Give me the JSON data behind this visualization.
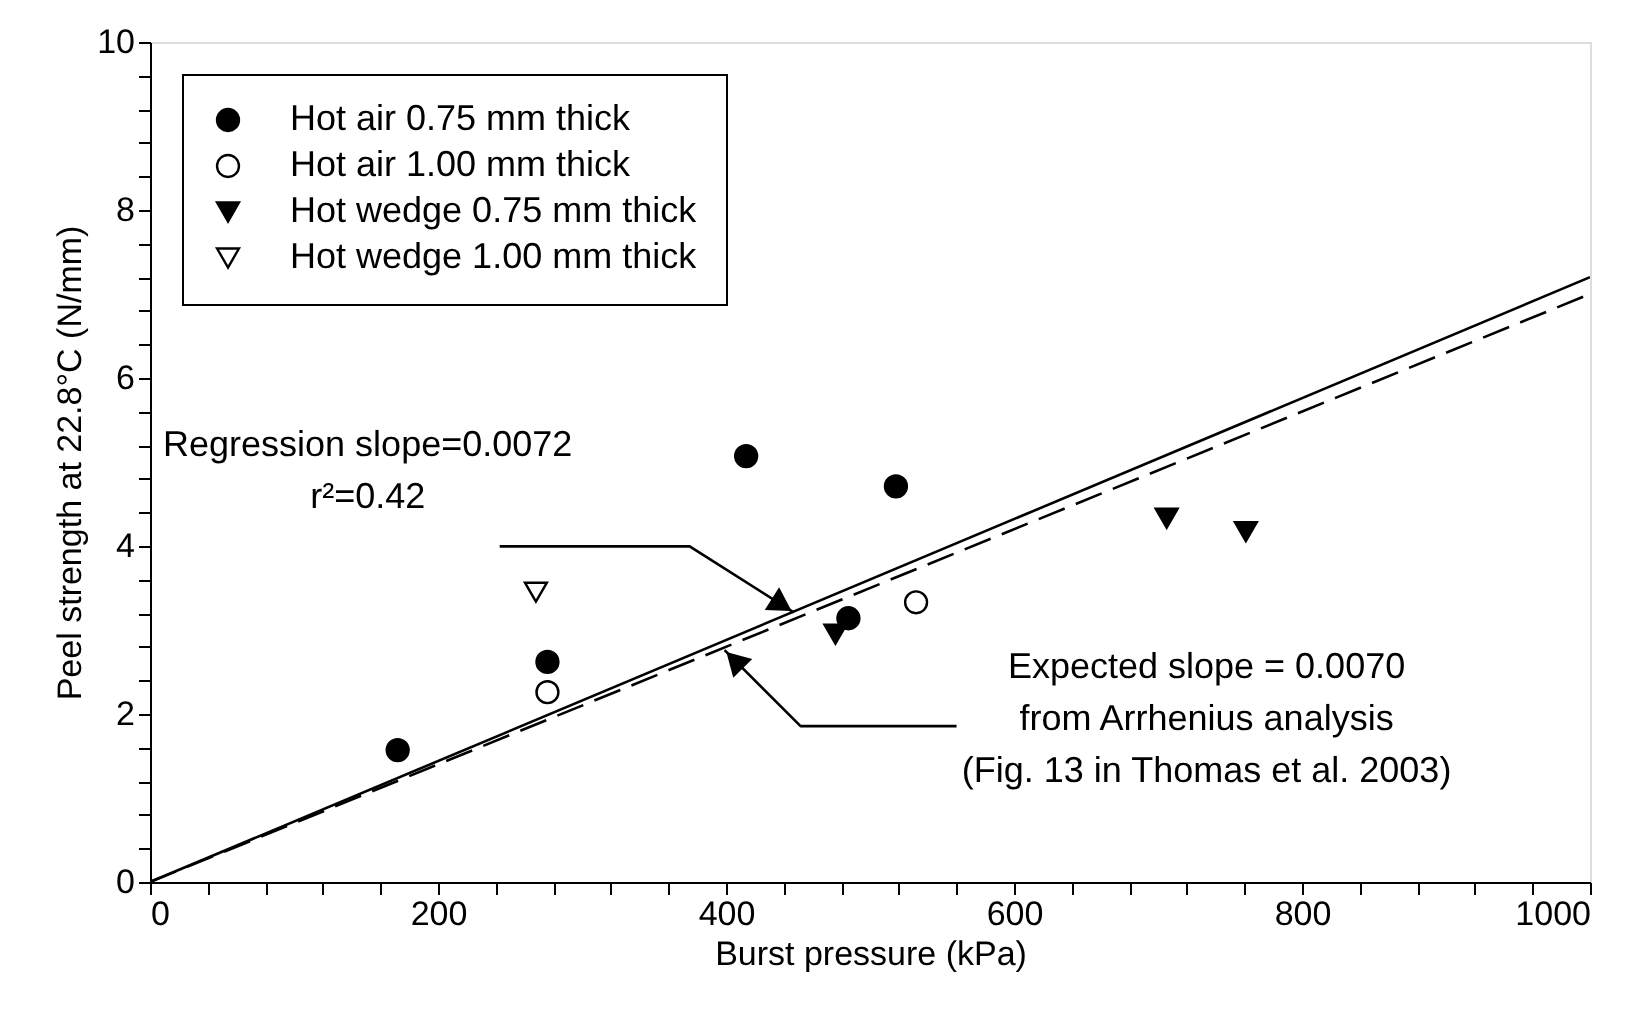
{
  "chart_data": {
    "type": "scatter",
    "xlabel": "Burst pressure (kPa)",
    "ylabel": "Peel strength at 22.8°C (N/mm)",
    "xlim": [
      0,
      1000
    ],
    "ylim": [
      0,
      10
    ],
    "xticks": [
      0,
      {
        "value": 40,
        "label": null
      },
      {
        "value": 80,
        "label": null
      },
      {
        "value": 120,
        "label": null
      },
      {
        "value": 160,
        "label": null
      },
      200,
      {
        "value": 240,
        "label": null
      },
      {
        "value": 280,
        "label": null
      },
      {
        "value": 320,
        "label": null
      },
      {
        "value": 360,
        "label": null
      },
      400,
      {
        "value": 440,
        "label": null
      },
      {
        "value": 480,
        "label": null
      },
      {
        "value": 520,
        "label": null
      },
      {
        "value": 560,
        "label": null
      },
      600,
      {
        "value": 640,
        "label": null
      },
      {
        "value": 680,
        "label": null
      },
      {
        "value": 720,
        "label": null
      },
      {
        "value": 760,
        "label": null
      },
      800,
      {
        "value": 840,
        "label": null
      },
      {
        "value": 880,
        "label": null
      },
      {
        "value": 920,
        "label": null
      },
      {
        "value": 960,
        "label": null
      },
      1000
    ],
    "yticks": [
      0,
      {
        "value": 0.4,
        "label": null
      },
      {
        "value": 0.8,
        "label": null
      },
      {
        "value": 1.2,
        "label": null
      },
      {
        "value": 1.6,
        "label": null
      },
      2,
      {
        "value": 2.4,
        "label": null
      },
      {
        "value": 2.8,
        "label": null
      },
      {
        "value": 3.2,
        "label": null
      },
      {
        "value": 3.6,
        "label": null
      },
      4,
      {
        "value": 4.4,
        "label": null
      },
      {
        "value": 4.8,
        "label": null
      },
      {
        "value": 5.2,
        "label": null
      },
      {
        "value": 5.6,
        "label": null
      },
      6,
      {
        "value": 6.4,
        "label": null
      },
      {
        "value": 6.8,
        "label": null
      },
      {
        "value": 7.2,
        "label": null
      },
      {
        "value": 7.6,
        "label": null
      },
      8,
      {
        "value": 8.4,
        "label": null
      },
      {
        "value": 8.8,
        "label": null
      },
      {
        "value": 9.2,
        "label": null
      },
      {
        "value": 9.6,
        "label": null
      },
      10
    ],
    "grid": false,
    "legend": "top left",
    "series": [
      {
        "name": "Hot air 0.75 mm thick",
        "color": "#000000",
        "marker": "circle",
        "x": [
          172,
          276,
          414,
          518,
          485
        ],
        "values": [
          1.57,
          2.62,
          5.07,
          4.71,
          3.14
        ]
      },
      {
        "name": "Hot air 1.00 mm thick",
        "color": "#ffffff",
        "marker": "circle",
        "x": [
          276,
          532
        ],
        "values": [
          2.26,
          3.33
        ]
      },
      {
        "name": "Hot wedge 0.75 mm thick",
        "color": "#000000",
        "marker": "triangle",
        "x": [
          476,
          706,
          761
        ],
        "values": [
          2.95,
          4.33,
          4.17
        ]
      },
      {
        "name": "Hot wedge 1.00 mm thick",
        "color": "#ffffff",
        "marker": "triangle",
        "x": [
          268
        ],
        "values": [
          3.45
        ]
      },
      {
        "type": "line",
        "color": "#000000",
        "line_style": "solid",
        "x": [
          0,
          1000
        ],
        "values": [
          0,
          7.2
        ]
      },
      {
        "type": "line",
        "color": "#000000",
        "line_style": "dashed",
        "x": [
          0,
          1000
        ],
        "values": [
          0,
          7.0
        ]
      }
    ],
    "annotations": [
      {
        "text": "Regression slope=0.0072\nr²=0.42",
        "x": 447,
        "y": 3.21
      },
      {
        "text": "Expected slope = 0.0070\nfrom Arrhenius analysis\n(Fig. 13 in Thomas et al. 2003)",
        "x": 399,
        "y": 2.76
      }
    ]
  }
}
